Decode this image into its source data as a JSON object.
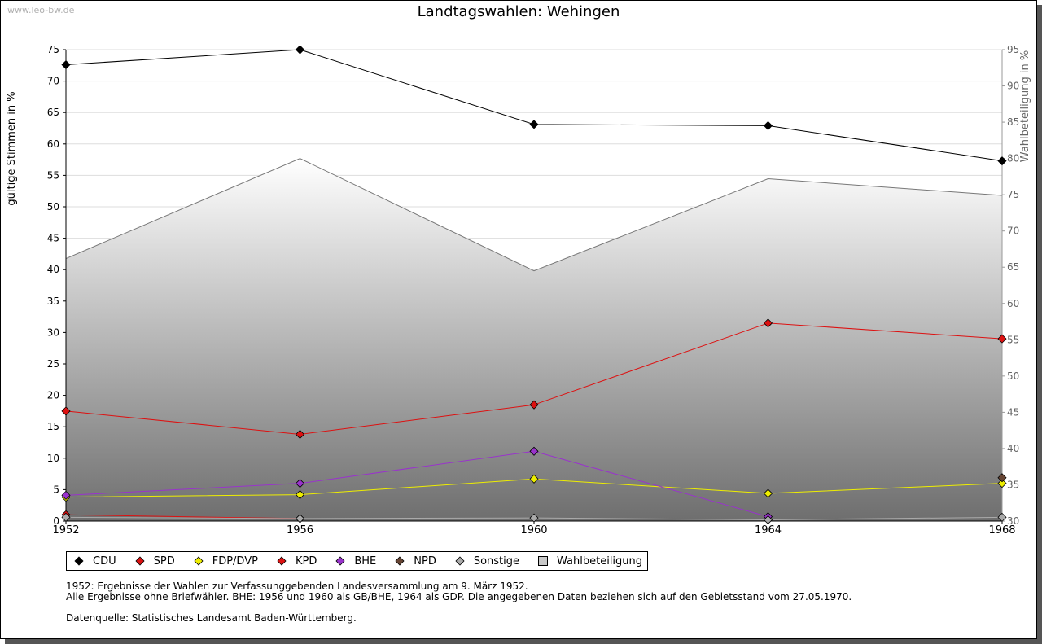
{
  "watermark": "www.leo-bw.de",
  "notes": {
    "line1": "1952: Ergebnisse der Wahlen zur Verfassunggebenden Landesversammlung am 9. März 1952.",
    "line2": "Alle Ergebnisse ohne Briefwähler. BHE: 1956 und 1960 als GB/BHE, 1964 als GDP. Die angegebenen Daten beziehen sich auf den Gebietsstand vom 27.05.1970.",
    "line3": "Datenquelle: Statistisches Landesamt Baden-Württemberg."
  },
  "chart_data": {
    "type": "line",
    "title": "Landtagswahlen: Wehingen",
    "xlabel": "",
    "ylabel": "gültige Stimmen in %",
    "y2label": "Wahlbeteiligung in %",
    "x": [
      "1952",
      "1956",
      "1960",
      "1964",
      "1968"
    ],
    "ylim": [
      0,
      75
    ],
    "y_ticks": [
      0,
      5,
      10,
      15,
      20,
      25,
      30,
      35,
      40,
      45,
      50,
      55,
      60,
      65,
      70,
      75
    ],
    "y2lim": [
      30,
      95
    ],
    "y2_ticks": [
      30,
      35,
      40,
      45,
      50,
      55,
      60,
      65,
      70,
      75,
      80,
      85,
      90,
      95
    ],
    "grid": true,
    "legend_position": "bottom-left",
    "series": [
      {
        "name": "CDU",
        "color": "#000000",
        "values": [
          72.6,
          75.0,
          63.1,
          62.9,
          57.3
        ]
      },
      {
        "name": "SPD",
        "color": "#dd1111",
        "values": [
          17.5,
          13.8,
          18.5,
          31.5,
          29.0
        ]
      },
      {
        "name": "FDP/DVP",
        "color": "#eeee00",
        "values": [
          3.8,
          4.2,
          6.7,
          4.4,
          6.0
        ]
      },
      {
        "name": "KPD",
        "color": "#dd1111",
        "values": [
          1.0,
          0.4,
          null,
          null,
          null
        ]
      },
      {
        "name": "BHE",
        "color": "#9933cc",
        "values": [
          4.1,
          6.0,
          11.1,
          0.7,
          null
        ]
      },
      {
        "name": "NPD",
        "color": "#664433",
        "values": [
          null,
          null,
          null,
          null,
          6.9
        ]
      },
      {
        "name": "Sonstige",
        "color": "#aaaaaa",
        "values": [
          0.6,
          0.4,
          0.5,
          0.2,
          0.6
        ]
      }
    ],
    "area_series": {
      "name": "Wahlbeteiligung",
      "color": "#888888",
      "axis": "y2",
      "values": [
        66.2,
        80.0,
        64.5,
        77.2,
        74.9
      ]
    }
  }
}
